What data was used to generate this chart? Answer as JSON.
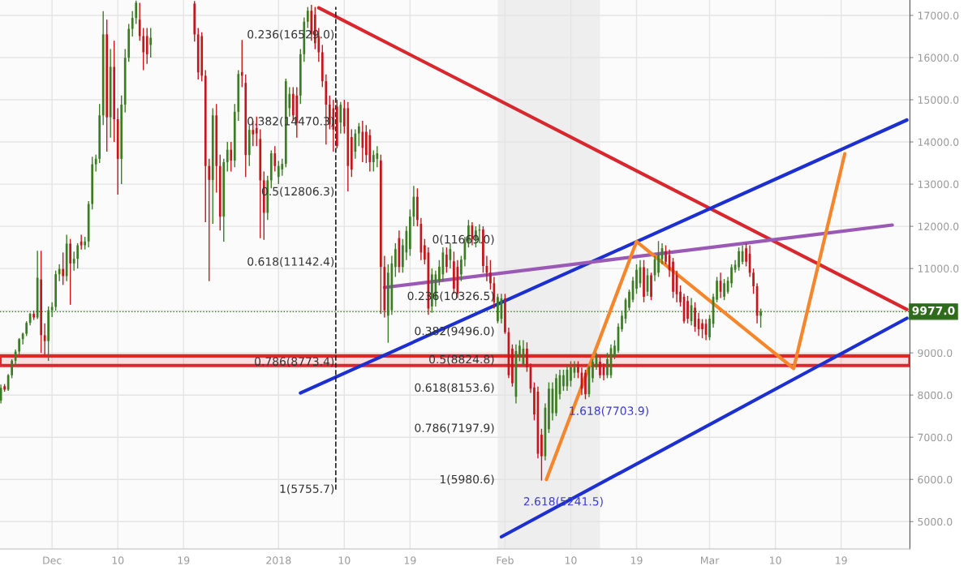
{
  "chart_data": {
    "type": "candlestick",
    "x": [
      "2017-11-24T00:00",
      "2017-11-24T12:00",
      "2017-11-25T00:00",
      "2017-11-25T12:00",
      "2017-11-26T00:00",
      "2017-11-26T12:00",
      "2017-11-27T00:00",
      "2017-11-27T12:00",
      "2017-11-28T00:00",
      "2017-11-28T12:00",
      "2017-11-29T00:00",
      "2017-11-29T12:00",
      "2017-11-30T00:00",
      "2017-11-30T12:00",
      "2017-12-01T00:00",
      "2017-12-01T12:00",
      "2017-12-02T00:00",
      "2017-12-02T12:00",
      "2017-12-03T00:00",
      "2017-12-03T12:00",
      "2017-12-04T00:00",
      "2017-12-04T12:00",
      "2017-12-05T00:00",
      "2017-12-05T12:00",
      "2017-12-06T00:00",
      "2017-12-06T12:00",
      "2017-12-07T00:00",
      "2017-12-07T12:00",
      "2017-12-08T00:00",
      "2017-12-08T12:00",
      "2017-12-09T00:00",
      "2017-12-09T12:00",
      "2017-12-10T00:00",
      "2017-12-10T12:00",
      "2017-12-11T00:00",
      "2017-12-11T12:00",
      "2017-12-12T00:00",
      "2017-12-12T12:00",
      "2017-12-13T00:00",
      "2017-12-13T12:00",
      "2017-12-14T00:00",
      "2017-12-14T12:00",
      "2017-12-20T12:00",
      "2017-12-21T00:00",
      "2017-12-21T12:00",
      "2017-12-22T00:00",
      "2017-12-22T12:00",
      "2017-12-23T00:00",
      "2017-12-23T12:00",
      "2017-12-24T00:00",
      "2017-12-24T12:00",
      "2017-12-25T00:00",
      "2017-12-25T12:00",
      "2017-12-26T00:00",
      "2017-12-26T12:00",
      "2017-12-27T00:00",
      "2017-12-27T12:00",
      "2017-12-28T00:00",
      "2017-12-28T12:00",
      "2017-12-29T00:00",
      "2017-12-29T12:00",
      "2017-12-30T00:00",
      "2017-12-30T12:00",
      "2017-12-31T00:00",
      "2017-12-31T12:00",
      "2018-01-01T00:00",
      "2018-01-01T12:00",
      "2018-01-02T00:00",
      "2018-01-02T12:00",
      "2018-01-03T00:00",
      "2018-01-03T12:00",
      "2018-01-04T00:00",
      "2018-01-04T12:00",
      "2018-01-05T00:00",
      "2018-01-05T12:00",
      "2018-01-06T00:00",
      "2018-01-06T12:00",
      "2018-01-07T00:00",
      "2018-01-07T12:00",
      "2018-01-08T00:00",
      "2018-01-08T12:00",
      "2018-01-09T00:00",
      "2018-01-09T12:00",
      "2018-01-10T00:00",
      "2018-01-10T12:00",
      "2018-01-11T00:00",
      "2018-01-11T12:00",
      "2018-01-12T00:00",
      "2018-01-12T12:00",
      "2018-01-13T00:00",
      "2018-01-13T12:00",
      "2018-01-14T00:00",
      "2018-01-14T12:00",
      "2018-01-15T00:00",
      "2018-01-15T12:00",
      "2018-01-16T00:00",
      "2018-01-16T12:00",
      "2018-01-17T00:00",
      "2018-01-17T12:00",
      "2018-01-18T00:00",
      "2018-01-18T12:00",
      "2018-01-19T00:00",
      "2018-01-19T12:00",
      "2018-01-20T00:00",
      "2018-01-20T12:00",
      "2018-01-21T00:00",
      "2018-01-21T12:00",
      "2018-01-22T00:00",
      "2018-01-22T12:00",
      "2018-01-23T00:00",
      "2018-01-23T12:00",
      "2018-01-24T00:00",
      "2018-01-24T12:00",
      "2018-01-25T00:00",
      "2018-01-25T12:00",
      "2018-01-26T00:00",
      "2018-01-26T12:00",
      "2018-01-27T00:00",
      "2018-01-27T12:00",
      "2018-01-28T00:00",
      "2018-01-28T12:00",
      "2018-01-29T00:00",
      "2018-01-29T12:00",
      "2018-01-30T00:00",
      "2018-01-30T12:00",
      "2018-01-31T00:00",
      "2018-01-31T12:00",
      "2018-02-01T00:00",
      "2018-02-01T12:00",
      "2018-02-02T00:00",
      "2018-02-02T12:00",
      "2018-02-03T00:00",
      "2018-02-03T12:00",
      "2018-02-04T00:00",
      "2018-02-04T12:00",
      "2018-02-05T00:00",
      "2018-02-05T12:00",
      "2018-02-06T00:00",
      "2018-02-06T12:00",
      "2018-02-07T00:00",
      "2018-02-07T12:00",
      "2018-02-08T00:00",
      "2018-02-08T12:00",
      "2018-02-09T00:00",
      "2018-02-09T12:00",
      "2018-02-10T00:00",
      "2018-02-10T12:00",
      "2018-02-11T00:00",
      "2018-02-11T12:00",
      "2018-02-12T00:00",
      "2018-02-12T12:00",
      "2018-02-13T00:00",
      "2018-02-13T12:00",
      "2018-02-14T00:00",
      "2018-02-14T12:00",
      "2018-02-15T00:00",
      "2018-02-15T12:00",
      "2018-02-16T00:00",
      "2018-02-16T12:00",
      "2018-02-17T00:00",
      "2018-02-17T12:00",
      "2018-02-18T00:00",
      "2018-02-18T12:00",
      "2018-02-19T00:00",
      "2018-02-19T12:00",
      "2018-02-20T00:00",
      "2018-02-20T12:00",
      "2018-02-21T00:00",
      "2018-02-21T12:00",
      "2018-02-22T00:00",
      "2018-02-22T12:00",
      "2018-02-23T00:00",
      "2018-02-23T12:00",
      "2018-02-24T00:00",
      "2018-02-24T12:00",
      "2018-02-25T00:00",
      "2018-02-25T12:00",
      "2018-02-26T00:00",
      "2018-02-26T12:00",
      "2018-02-27T00:00",
      "2018-02-27T12:00",
      "2018-02-28T00:00",
      "2018-02-28T12:00",
      "2018-03-01T00:00",
      "2018-03-01T12:00",
      "2018-03-02T00:00",
      "2018-03-02T12:00",
      "2018-03-03T00:00",
      "2018-03-03T12:00",
      "2018-03-04T00:00",
      "2018-03-04T12:00",
      "2018-03-05T00:00",
      "2018-03-05T12:00",
      "2018-03-06T00:00",
      "2018-03-06T12:00",
      "2018-03-07T00:00",
      "2018-03-07T12:00",
      "2018-03-08T00:00"
    ],
    "ohlc": [
      [
        7870,
        8250,
        7800,
        8170
      ],
      [
        8210,
        8260,
        8080,
        8130
      ],
      [
        8130,
        8500,
        8100,
        8470
      ],
      [
        8470,
        8850,
        8400,
        8815
      ],
      [
        8815,
        9080,
        8700,
        9030
      ],
      [
        9030,
        9350,
        8950,
        9325
      ],
      [
        9325,
        9480,
        9200,
        9455
      ],
      [
        9455,
        9750,
        9400,
        9710
      ],
      [
        9710,
        9950,
        9650,
        9925
      ],
      [
        9925,
        10000,
        9780,
        9840
      ],
      [
        9840,
        11420,
        9800,
        10780
      ],
      [
        10740,
        11420,
        9000,
        9420
      ],
      [
        9420,
        9700,
        8950,
        9280
      ],
      [
        9280,
        10100,
        8810,
        10010
      ],
      [
        10010,
        10200,
        9850,
        10090
      ],
      [
        10090,
        10950,
        10000,
        10865
      ],
      [
        10865,
        11100,
        10700,
        10990
      ],
      [
        10990,
        11380,
        10610,
        10820
      ],
      [
        10820,
        11800,
        10700,
        11590
      ],
      [
        11590,
        11700,
        10140,
        11120
      ],
      [
        11120,
        11400,
        10950,
        11230
      ],
      [
        11230,
        11600,
        11000,
        11550
      ],
      [
        11640,
        11800,
        11450,
        11550
      ],
      [
        11550,
        11750,
        11450,
        11640
      ],
      [
        11640,
        12600,
        11500,
        12530
      ],
      [
        12530,
        13650,
        12400,
        13470
      ],
      [
        13470,
        13700,
        13300,
        13600
      ],
      [
        13600,
        14900,
        13500,
        14630
      ],
      [
        14630,
        17100,
        14400,
        16550
      ],
      [
        16550,
        16900,
        13770,
        14585
      ],
      [
        14585,
        16200,
        14100,
        15780
      ],
      [
        15780,
        16400,
        14000,
        14540
      ],
      [
        14540,
        14800,
        12750,
        13600
      ],
      [
        13600,
        15100,
        13000,
        14885
      ],
      [
        14885,
        16200,
        14700,
        15995
      ],
      [
        15995,
        16800,
        15900,
        16680
      ],
      [
        16680,
        17100,
        16500,
        16940
      ],
      [
        16940,
        17350,
        16800,
        17300
      ],
      [
        16900,
        17300,
        16400,
        16510
      ],
      [
        16510,
        16700,
        15700,
        16125
      ],
      [
        16510,
        16700,
        15850,
        16080
      ],
      [
        16300,
        16700,
        16000,
        16470
      ],
      [
        17280,
        17340,
        16380,
        16550
      ],
      [
        16550,
        16700,
        15480,
        15650
      ],
      [
        16510,
        16600,
        15440,
        15570
      ],
      [
        15570,
        15700,
        12100,
        13430
      ],
      [
        13430,
        13600,
        10700,
        13100
      ],
      [
        13100,
        14800,
        12060,
        14630
      ],
      [
        14630,
        14900,
        12800,
        13430
      ],
      [
        13430,
        13700,
        11900,
        12230
      ],
      [
        12230,
        13600,
        11635,
        13520
      ],
      [
        13520,
        14000,
        13300,
        13815
      ],
      [
        13815,
        14000,
        13300,
        13560
      ],
      [
        13560,
        14900,
        13400,
        14715
      ],
      [
        14715,
        15700,
        14500,
        15610
      ],
      [
        15655,
        16420,
        15300,
        15570
      ],
      [
        15400,
        15600,
        13170,
        13690
      ],
      [
        13690,
        14400,
        13430,
        14285
      ],
      [
        14285,
        14500,
        13900,
        14180
      ],
      [
        14330,
        14600,
        13900,
        14200
      ],
      [
        14070,
        14300,
        11720,
        13090
      ],
      [
        13090,
        13300,
        11680,
        12320
      ],
      [
        12320,
        13200,
        12150,
        13090
      ],
      [
        13090,
        13800,
        12900,
        13730
      ],
      [
        13730,
        13900,
        13300,
        13430
      ],
      [
        13170,
        13550,
        13000,
        13430
      ],
      [
        13350,
        13600,
        13200,
        13480
      ],
      [
        13480,
        15500,
        13400,
        15440
      ],
      [
        14800,
        15300,
        14600,
        15140
      ],
      [
        15140,
        15300,
        14500,
        14630
      ],
      [
        15100,
        15300,
        14100,
        14460
      ],
      [
        15100,
        16200,
        14900,
        16080
      ],
      [
        16080,
        16950,
        15900,
        16850
      ],
      [
        16850,
        17200,
        16700,
        17110
      ],
      [
        17110,
        17250,
        16400,
        16550
      ],
      [
        17020,
        17200,
        16200,
        16340
      ],
      [
        16510,
        16700,
        15900,
        16125
      ],
      [
        16125,
        16300,
        15300,
        15440
      ],
      [
        15440,
        15600,
        13940,
        14885
      ],
      [
        14885,
        15100,
        14300,
        14415
      ],
      [
        14800,
        15000,
        13770,
        14290
      ],
      [
        14840,
        15000,
        13850,
        13900
      ],
      [
        14460,
        14950,
        14200,
        14880
      ],
      [
        14800,
        15000,
        14200,
        14370
      ],
      [
        14800,
        14950,
        12830,
        13430
      ],
      [
        14115,
        14300,
        13170,
        13345
      ],
      [
        13770,
        14300,
        13600,
        14200
      ],
      [
        14200,
        14450,
        13900,
        14370
      ],
      [
        14240,
        14500,
        13520,
        13860
      ],
      [
        14240,
        14400,
        13500,
        13690
      ],
      [
        14160,
        14300,
        13300,
        13520
      ],
      [
        13520,
        13800,
        13300,
        13690
      ],
      [
        13600,
        13900,
        13400,
        13730
      ],
      [
        13560,
        13700,
        9925,
        11040
      ],
      [
        11036,
        11300,
        9840,
        10010
      ],
      [
        9880,
        11100,
        9240,
        10900
      ],
      [
        10010,
        11300,
        9900,
        11120
      ],
      [
        11036,
        11600,
        10800,
        11460
      ],
      [
        11720,
        11900,
        10900,
        11036
      ],
      [
        11036,
        11700,
        10900,
        11550
      ],
      [
        11380,
        12000,
        11200,
        11890
      ],
      [
        11460,
        12400,
        11300,
        12230
      ],
      [
        12230,
        12960,
        12000,
        12700
      ],
      [
        12700,
        12900,
        12000,
        12150
      ],
      [
        12060,
        12200,
        11200,
        11380
      ],
      [
        11550,
        11700,
        11100,
        11210
      ],
      [
        11380,
        11500,
        9900,
        10050
      ],
      [
        10100,
        11000,
        9950,
        10860
      ],
      [
        10270,
        10950,
        10100,
        10860
      ],
      [
        10700,
        11200,
        10600,
        11040
      ],
      [
        10860,
        11500,
        10700,
        11380
      ],
      [
        11330,
        11500,
        10900,
        11040
      ],
      [
        11200,
        11600,
        11000,
        11460
      ],
      [
        11170,
        11400,
        10400,
        10520
      ],
      [
        11040,
        11200,
        10300,
        10400
      ],
      [
        10860,
        11300,
        10700,
        11210
      ],
      [
        11210,
        11750,
        11050,
        11630
      ],
      [
        11630,
        12150,
        11500,
        12020
      ],
      [
        12020,
        12100,
        11550,
        11700
      ],
      [
        11700,
        12000,
        11500,
        11900
      ],
      [
        11900,
        12050,
        11600,
        11925
      ],
      [
        11925,
        12000,
        10900,
        11060
      ],
      [
        11060,
        11300,
        10700,
        10900
      ],
      [
        10900,
        11200,
        10500,
        10650
      ],
      [
        10650,
        10800,
        10050,
        10200
      ],
      [
        9750,
        10400,
        9700,
        10325
      ],
      [
        9810,
        10400,
        9700,
        10290
      ],
      [
        10290,
        10400,
        9450,
        9490
      ],
      [
        9490,
        9600,
        8400,
        8470
      ],
      [
        9100,
        9200,
        8200,
        8280
      ],
      [
        7960,
        9200,
        7800,
        9045
      ],
      [
        8920,
        9300,
        8800,
        9170
      ],
      [
        8725,
        9300,
        8700,
        9100
      ],
      [
        9100,
        9250,
        8550,
        8660
      ],
      [
        8660,
        8750,
        8050,
        8150
      ],
      [
        8180,
        8300,
        7400,
        7540
      ],
      [
        8080,
        8200,
        6500,
        6610
      ],
      [
        7060,
        7200,
        5973,
        6550
      ],
      [
        6550,
        7800,
        6450,
        7700
      ],
      [
        7190,
        8300,
        7100,
        8150
      ],
      [
        7570,
        8300,
        7400,
        8150
      ],
      [
        7570,
        8500,
        7500,
        8400
      ],
      [
        8020,
        8600,
        7900,
        8470
      ],
      [
        8210,
        8600,
        8100,
        8470
      ],
      [
        8210,
        8700,
        8100,
        8600
      ],
      [
        8340,
        8800,
        8200,
        8660
      ],
      [
        8530,
        8800,
        8400,
        8660
      ],
      [
        8660,
        8800,
        8400,
        8530
      ],
      [
        8530,
        8650,
        8000,
        8150
      ],
      [
        8530,
        8600,
        7900,
        8020
      ],
      [
        8020,
        8700,
        7950,
        8660
      ],
      [
        8400,
        8850,
        8300,
        8790
      ],
      [
        8660,
        9000,
        8600,
        8920
      ],
      [
        8790,
        8900,
        8400,
        8470
      ],
      [
        8660,
        8750,
        8350,
        8470
      ],
      [
        8470,
        9000,
        8400,
        8850
      ],
      [
        8470,
        9200,
        8400,
        9110
      ],
      [
        8920,
        9300,
        8850,
        9170
      ],
      [
        9050,
        9700,
        9000,
        9620
      ],
      [
        9560,
        10000,
        9500,
        9880
      ],
      [
        9810,
        10300,
        9700,
        10260
      ],
      [
        10070,
        10500,
        10000,
        10450
      ],
      [
        10260,
        10800,
        10200,
        10710
      ],
      [
        10520,
        11100,
        10400,
        10970
      ],
      [
        10650,
        11200,
        10550,
        11030
      ],
      [
        11030,
        11200,
        10200,
        10330
      ],
      [
        10450,
        11000,
        10350,
        10840
      ],
      [
        10840,
        10900,
        10250,
        10330
      ],
      [
        10840,
        11300,
        10700,
        11220
      ],
      [
        10900,
        11650,
        10800,
        11320
      ],
      [
        11220,
        11600,
        11100,
        11480
      ],
      [
        11410,
        11550,
        11100,
        11160
      ],
      [
        11320,
        11450,
        10800,
        10960
      ],
      [
        11160,
        11250,
        10300,
        10450
      ],
      [
        10840,
        10950,
        10200,
        10390
      ],
      [
        10450,
        10600,
        10100,
        10200
      ],
      [
        10330,
        10400,
        9700,
        9750
      ],
      [
        10230,
        10350,
        9700,
        9810
      ],
      [
        9750,
        10300,
        9650,
        10130
      ],
      [
        10070,
        10200,
        9500,
        9620
      ],
      [
        9810,
        9950,
        9400,
        9560
      ],
      [
        9700,
        9800,
        9350,
        9560
      ],
      [
        9690,
        9800,
        9300,
        9430
      ],
      [
        9370,
        9900,
        9300,
        9810
      ],
      [
        9690,
        10400,
        9600,
        10330
      ],
      [
        10260,
        10800,
        10200,
        10710
      ],
      [
        10710,
        10900,
        10300,
        10450
      ],
      [
        10330,
        10750,
        10250,
        10650
      ],
      [
        10450,
        10800,
        10400,
        10710
      ],
      [
        10650,
        11100,
        10550,
        11030
      ],
      [
        10970,
        11200,
        10900,
        11090
      ],
      [
        11030,
        11500,
        10950,
        11410
      ],
      [
        11160,
        11550,
        11100,
        11410
      ],
      [
        11480,
        11600,
        11050,
        11160
      ],
      [
        11350,
        11550,
        10800,
        10900
      ],
      [
        10900,
        11000,
        10400,
        10580
      ],
      [
        10580,
        10650,
        9700,
        9880
      ],
      [
        9880,
        10050,
        9600,
        9977
      ]
    ],
    "series": [
      {
        "type": "line",
        "color": "#d9272e",
        "x": [
          "2018-01-06T12:00",
          "2018-03-28T00:00"
        ],
        "values": [
          17180,
          10030
        ]
      },
      {
        "type": "line",
        "color": "#1c2fd0",
        "x": [
          "2018-01-04T00:00",
          "2018-03-28T00:00"
        ],
        "values": [
          8050,
          14520
        ]
      },
      {
        "type": "line",
        "color": "#1c2fd0",
        "x": [
          "2018-01-31T12:00",
          "2018-03-28T00:00"
        ],
        "values": [
          4640,
          9820
        ]
      },
      {
        "type": "line",
        "color": "#9b59b6",
        "x": [
          "2018-01-15T12:00",
          "2018-03-26T00:00"
        ],
        "values": [
          10550,
          12030
        ]
      },
      {
        "type": "line",
        "color": "#222222",
        "line_style": "dashed",
        "x": [
          "2018-01-08T20:00",
          "2018-01-08T20:00"
        ],
        "values": [
          5760,
          17200
        ]
      },
      {
        "type": "line",
        "color": "#f5862b",
        "x": [
          "2018-02-06T16:00",
          "2018-02-19T00:00",
          "2018-03-12T12:00",
          "2018-03-19T12:00"
        ],
        "values": [
          6000,
          11640,
          8630,
          13720
        ]
      }
    ],
    "annotations": [
      {
        "text": "0.236(16529.0)",
        "x": "2018-01-08T16:00",
        "y": 16529.0
      },
      {
        "text": "0.382(14470.3)",
        "x": "2018-01-08T16:00",
        "y": 14470.3
      },
      {
        "text": "0.5(12806.3)",
        "x": "2018-01-08T16:00",
        "y": 12806.3
      },
      {
        "text": "0.618(11142.4)",
        "x": "2018-01-08T16:00",
        "y": 11142.4
      },
      {
        "text": "0.786(8773.4)",
        "x": "2018-01-08T16:00",
        "y": 8773.4
      },
      {
        "text": "1(5755.7)",
        "x": "2018-01-08T16:00",
        "y": 5755.7
      },
      {
        "text": "0(11669.0)",
        "x": "2018-01-30T14:00",
        "y": 11669.0
      },
      {
        "text": "0.236(10326.5)",
        "x": "2018-01-30T14:00",
        "y": 10326.5
      },
      {
        "text": "0.382(9496.0)",
        "x": "2018-01-30T14:00",
        "y": 9496.0
      },
      {
        "text": "0.5(8824.8)",
        "x": "2018-01-30T14:00",
        "y": 8824.8
      },
      {
        "text": "0.618(8153.6)",
        "x": "2018-01-30T14:00",
        "y": 8153.6
      },
      {
        "text": "0.786(7197.9)",
        "x": "2018-01-30T14:00",
        "y": 7197.9
      },
      {
        "text": "1(5980.6)",
        "x": "2018-01-30T14:00",
        "y": 5980.6
      },
      "1.618(7703.9)",
      "2.618(5241.5)"
    ],
    "ref_lines": [
      {
        "axis": "y",
        "value": 9977.0,
        "label": "9977.0",
        "color": "#2f6b1d",
        "line_style": "dotted"
      }
    ],
    "bands": [
      {
        "axis": "x",
        "from": "2018-01-31T00:00",
        "to": "2018-02-14T00:00",
        "color": "#eeeeee"
      },
      {
        "axis": "y",
        "from": 8700,
        "to": 8930,
        "color": "#e0262b"
      }
    ],
    "xlim": [
      "2017-11-23T21:00",
      "2018-03-28T10:00"
    ],
    "xticks": [
      {
        "value": "2017-12-01",
        "label": "Dec"
      },
      {
        "value": "2017-12-10",
        "label": "10"
      },
      {
        "value": "2017-12-19",
        "label": "19"
      },
      {
        "value": "2018-01-01",
        "label": "2018"
      },
      {
        "value": "2018-01-10",
        "label": "10"
      },
      {
        "value": "2018-01-19",
        "label": "19"
      },
      {
        "value": "2018-02-01",
        "label": "Feb"
      },
      {
        "value": "2018-02-10",
        "label": "10"
      },
      {
        "value": "2018-02-19",
        "label": "19"
      },
      {
        "value": "2018-03-01",
        "label": "Mar"
      },
      {
        "value": "2018-03-10",
        "label": "10"
      },
      {
        "value": "2018-03-19",
        "label": "19"
      }
    ],
    "ylim": [
      4350,
      17365
    ],
    "yticks": [
      {
        "value": 5000,
        "label": "5000.0"
      },
      {
        "value": 6000,
        "label": "6000.0"
      },
      {
        "value": 7000,
        "label": "7000.0"
      },
      {
        "value": 8000,
        "label": "8000.0"
      },
      {
        "value": 9000,
        "label": "9000.0"
      },
      {
        "value": 10000,
        "label": null
      },
      {
        "value": 11000,
        "label": "11000.0"
      },
      {
        "value": 12000,
        "label": "12000.0"
      },
      {
        "value": 13000,
        "label": "13000.0"
      },
      {
        "value": 14000,
        "label": "14000.0"
      },
      {
        "value": 15000,
        "label": "15000.0"
      },
      {
        "value": 16000,
        "label": "16000.0"
      },
      {
        "value": 17000,
        "label": "17000.0"
      }
    ],
    "grid": true
  }
}
